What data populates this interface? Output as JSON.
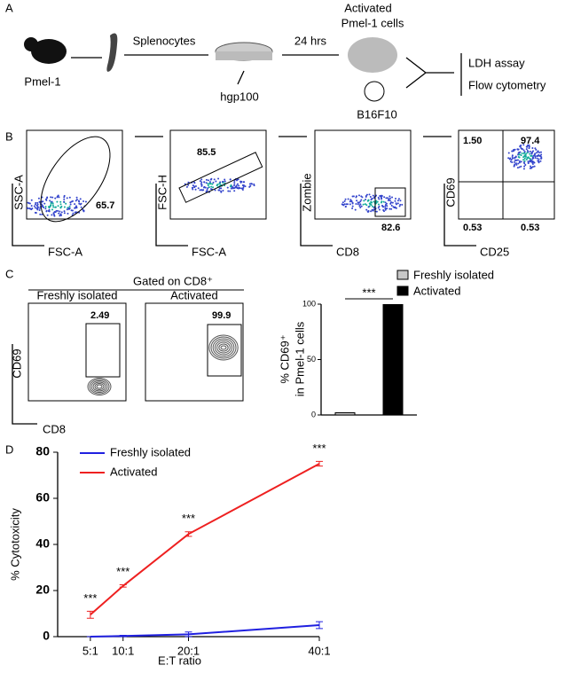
{
  "panel_a": {
    "label": "A",
    "mouse": "Pmel-1",
    "splenocytes": "Splenocytes",
    "peptide": "hgp100",
    "time": "24 hrs",
    "activated": "Activated",
    "activated_cells": "Pmel-1 cells",
    "tumor": "B16F10",
    "readout_1": "LDH assay",
    "readout_2": "Flow cytometry"
  },
  "panel_b": {
    "label": "B",
    "plots": [
      {
        "x_label": "FSC-A",
        "y_label": "SSC-A",
        "gates": [
          "65.7"
        ]
      },
      {
        "x_label": "FSC-A",
        "y_label": "FSC-H",
        "gates": [
          "85.5"
        ]
      },
      {
        "x_label": "CD8",
        "y_label": "Zombie",
        "gates": [
          "82.6"
        ]
      },
      {
        "x_label": "CD25",
        "y_label": "CD69",
        "gates": [
          "1.50",
          "97.4",
          "0.53",
          "0.53"
        ]
      }
    ]
  },
  "panel_c": {
    "label": "C",
    "header": "Gated on CD8⁺",
    "plots": [
      {
        "title": "Freshly isolated",
        "gate": "2.49"
      },
      {
        "title": "Activated",
        "gate": "99.9"
      }
    ],
    "x_label": "CD8",
    "y_label": "CD69"
  },
  "panel_d": {
    "label": "D"
  },
  "chart_data": [
    {
      "type": "bar",
      "categories": [
        null,
        null
      ],
      "series": [
        {
          "name": "Freshly isolated",
          "color": "#c8c8c8",
          "values": [
            2,
            null
          ]
        },
        {
          "name": "Activated",
          "color": "#000000",
          "values": [
            null,
            99.6
          ]
        }
      ],
      "ylabel": [
        "% CD69⁺",
        "in Pmel-1 cells"
      ],
      "ylim": [
        0,
        100
      ],
      "yticks": [
        0,
        50,
        100
      ],
      "annotation": "***"
    },
    {
      "type": "line",
      "x": [
        5,
        10,
        20,
        40
      ],
      "series": [
        {
          "name": "Freshly isolated",
          "color": "#2020e0",
          "values": [
            0,
            0.3,
            1,
            5
          ],
          "errors": [
            0,
            0.3,
            1,
            1.5
          ]
        },
        {
          "name": "Activated",
          "color": "#ee2020",
          "values": [
            9.5,
            22,
            44.5,
            75
          ],
          "errors": [
            1.5,
            0.5,
            1,
            1
          ]
        }
      ],
      "annotations": [
        "***",
        "***",
        "***",
        "***"
      ],
      "xlabel": "E:T ratio",
      "ylabel": "% Cytotoxicity",
      "xlim": [
        0,
        40
      ],
      "ylim": [
        0,
        80
      ],
      "xticks": [
        {
          "value": 5,
          "label": "5:1"
        },
        {
          "value": 10,
          "label": "10:1"
        },
        {
          "value": 20,
          "label": "20:1"
        },
        {
          "value": 40,
          "label": "40:1"
        }
      ],
      "yticks": [
        0,
        20,
        40,
        60,
        80
      ],
      "legend": "upper left"
    }
  ]
}
